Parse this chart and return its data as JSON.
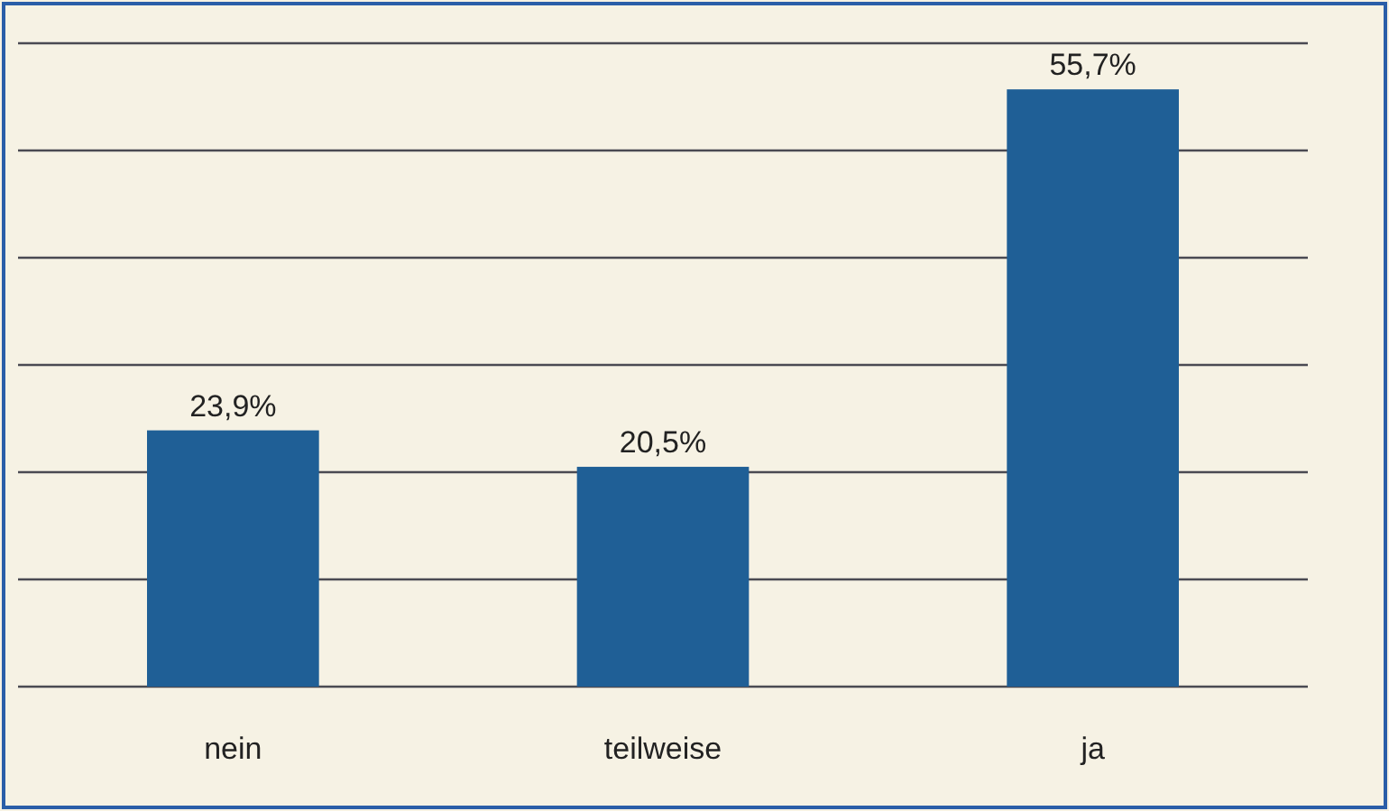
{
  "chart_data": {
    "type": "bar",
    "categories": [
      "nein",
      "teilweise",
      "ja"
    ],
    "values": [
      23.9,
      20.5,
      55.7
    ],
    "value_labels": [
      "23,9%",
      "20,5%",
      "55,7%"
    ],
    "color": "#1f5f96",
    "ylim": [
      0,
      60
    ],
    "yticks": [
      {
        "value": 0,
        "label": null
      },
      {
        "value": 10,
        "label": null
      },
      {
        "value": 20,
        "label": null
      },
      {
        "value": 30,
        "label": null
      },
      {
        "value": 40,
        "label": null
      },
      {
        "value": 50,
        "label": null
      },
      {
        "value": 60,
        "label": null
      }
    ],
    "grid": "y",
    "tick_labels": "x"
  }
}
